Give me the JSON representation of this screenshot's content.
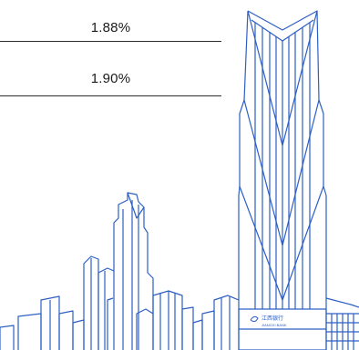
{
  "rates": [
    {
      "value": "1.88%"
    },
    {
      "value": "1.90%"
    }
  ],
  "bank_sign": {
    "chinese": "江西银行",
    "english": "JIANGXI BANK"
  },
  "colors": {
    "line_art": "#2d5fc4",
    "text": "#1a1a1a",
    "divider": "#2b2b2b"
  }
}
